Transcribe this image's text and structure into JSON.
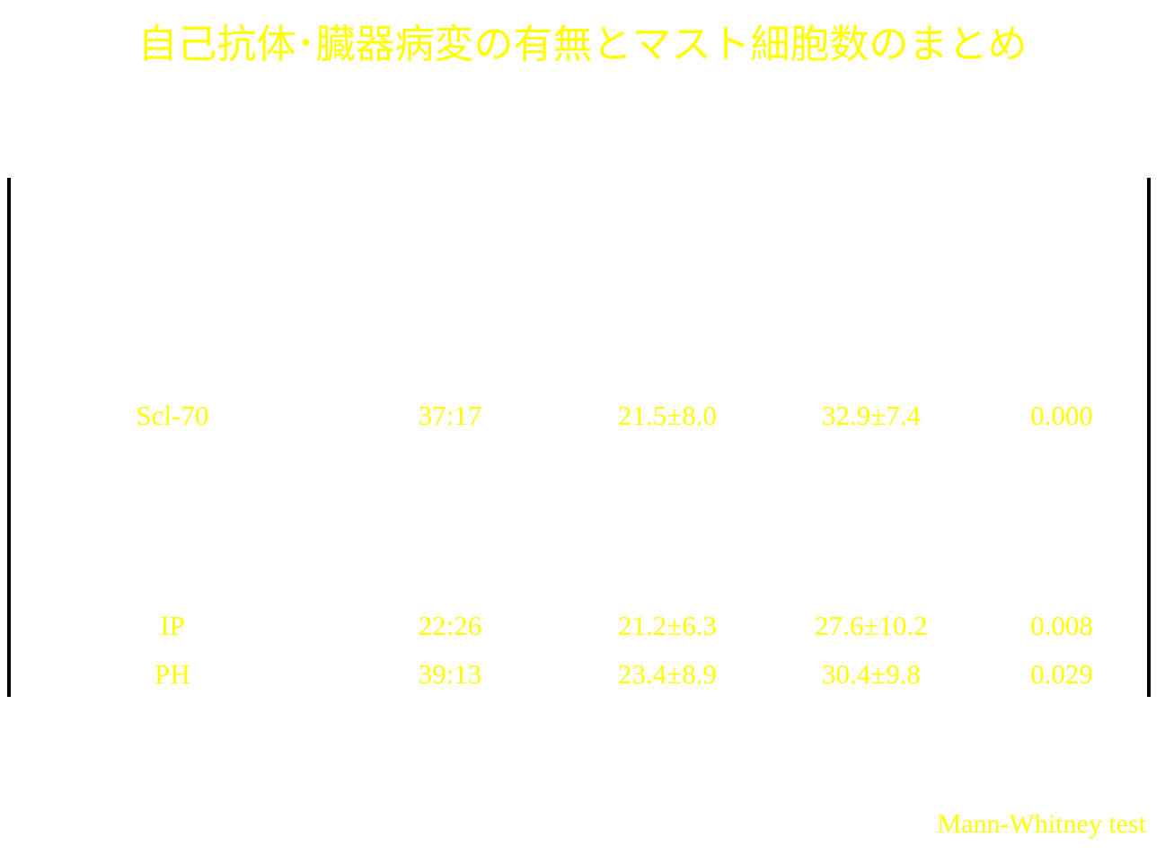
{
  "colors": {
    "background": "#ffffff",
    "text": "#ffff00",
    "border": "#000000"
  },
  "title": "自己抗体･臓器病変の有無とマスト細胞数のまとめ",
  "table": {
    "rows": [
      {
        "label": "Scl-70",
        "ratio": "37:17",
        "mean_a": "21.5±8.0",
        "mean_b": "32.9±7.4",
        "p": "0.000"
      },
      {
        "label": "IP",
        "ratio": "22:26",
        "mean_a": "21.2±6.3",
        "mean_b": "27.6±10.2",
        "p": "0.008"
      },
      {
        "label": "PH",
        "ratio": "39:13",
        "mean_a": "23.4±8.9",
        "mean_b": "30.4±9.8",
        "p": "0.029"
      }
    ]
  },
  "footnote": "Mann-Whitney test"
}
